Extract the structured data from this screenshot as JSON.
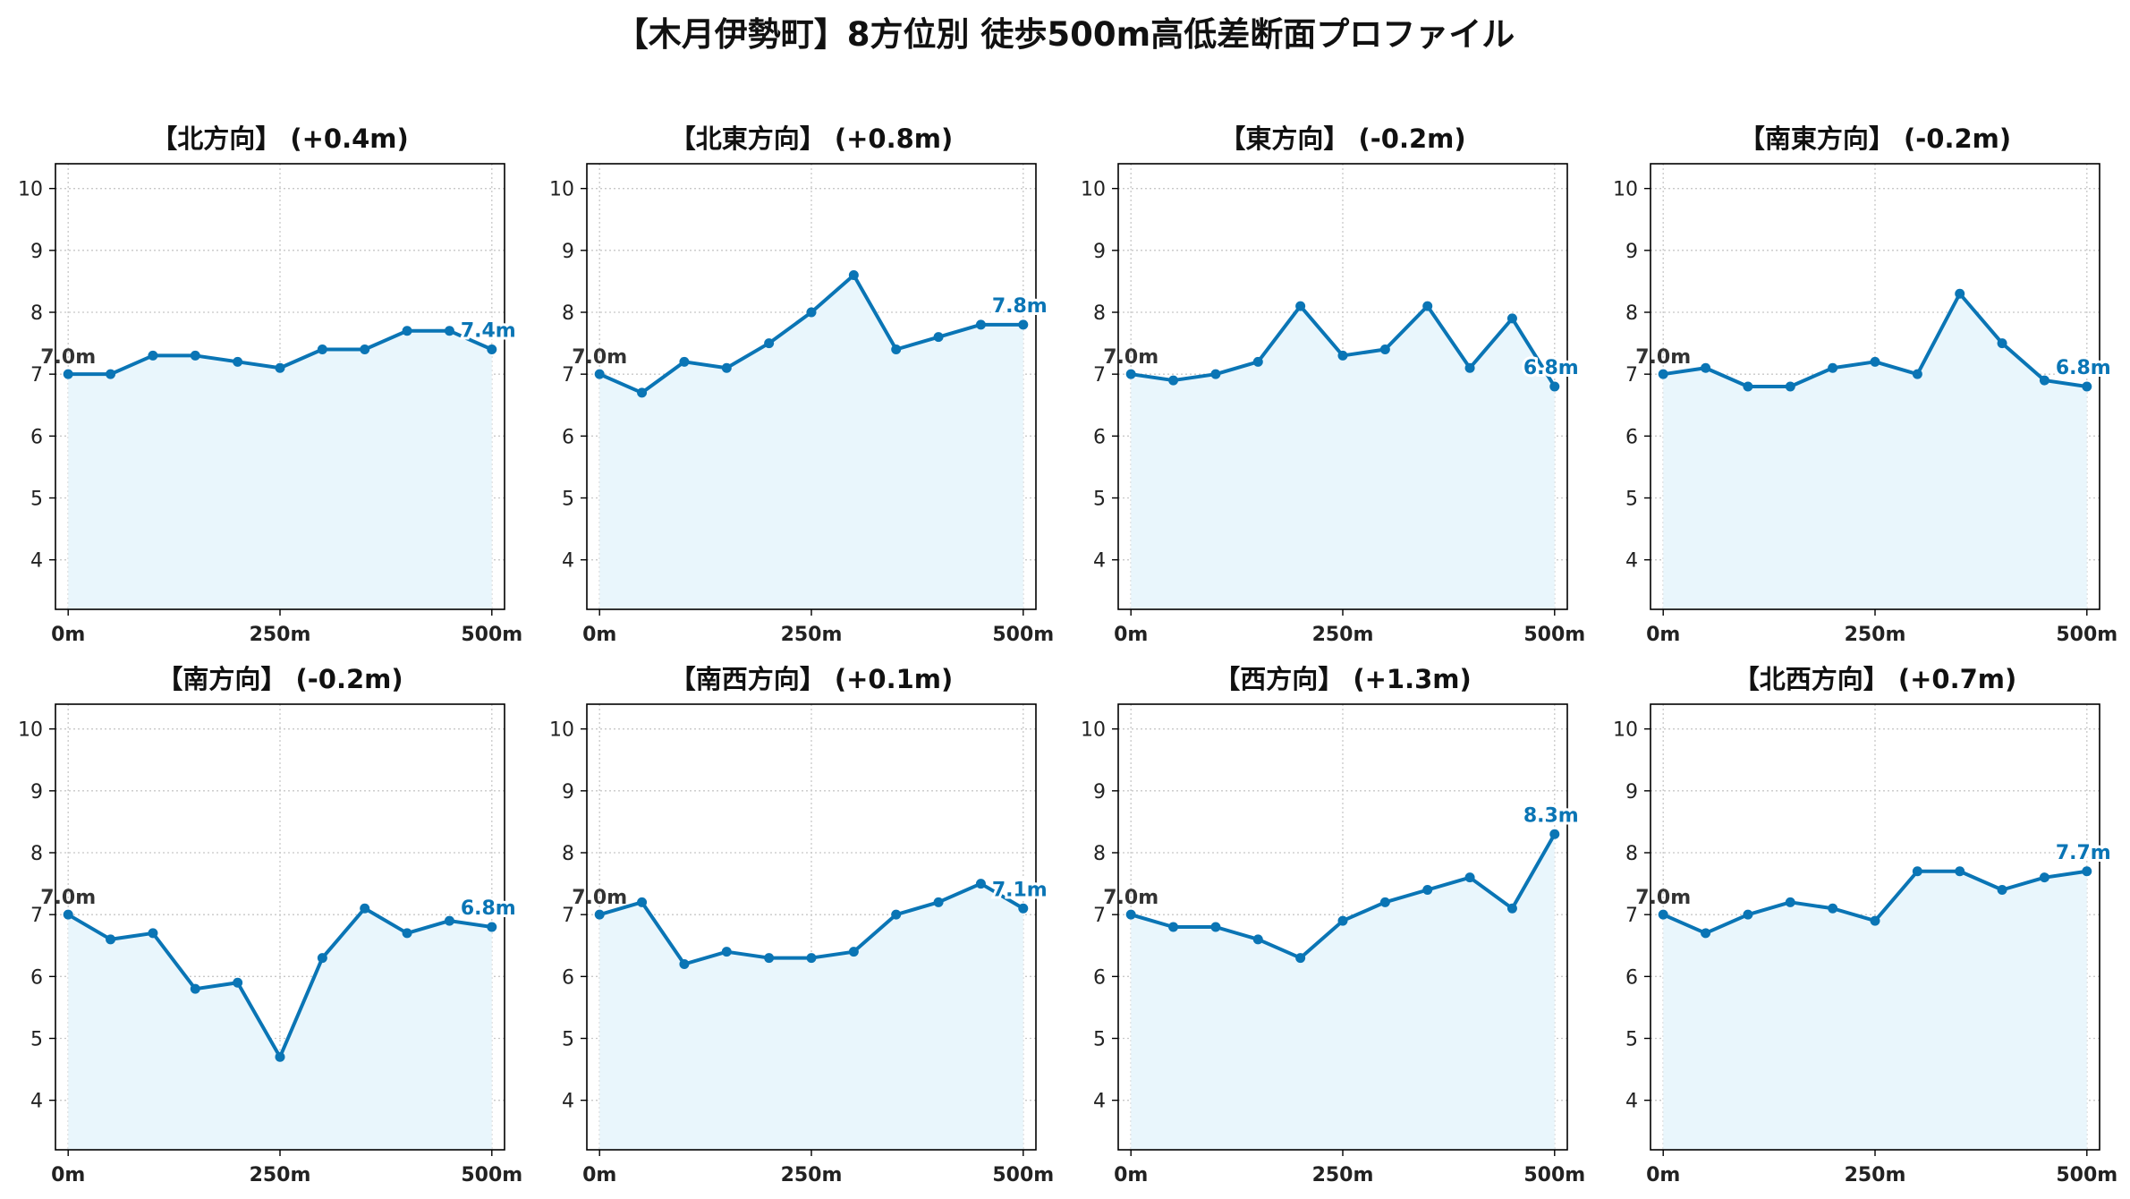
{
  "title": "【木月伊勢町】8方位別 徒歩500m高低差断面プロファイル",
  "colors": {
    "line": "#0a75b5",
    "fill": "#e9f6fc",
    "grid": "#c8c8c8",
    "start_label": "#333333",
    "end_label": "#0a75b5"
  },
  "chart_data": [
    {
      "type": "area",
      "title": "【北方向】 (+0.4m)",
      "x": [
        0,
        50,
        100,
        150,
        200,
        250,
        300,
        350,
        400,
        450,
        500
      ],
      "y": [
        7.0,
        7.0,
        7.3,
        7.3,
        7.2,
        7.1,
        7.4,
        7.4,
        7.7,
        7.7,
        7.4
      ],
      "xticks": [
        "0m",
        "250m",
        "500m"
      ],
      "yticks": [
        4,
        5,
        6,
        7,
        8,
        9,
        10
      ],
      "ylim": [
        3.2,
        10.4
      ],
      "xlim": [
        -15,
        515
      ],
      "start_label": "7.0m",
      "end_label": "7.4m",
      "grid": true
    },
    {
      "type": "area",
      "title": "【北東方向】 (+0.8m)",
      "x": [
        0,
        50,
        100,
        150,
        200,
        250,
        300,
        350,
        400,
        450,
        500
      ],
      "y": [
        7.0,
        6.7,
        7.2,
        7.1,
        7.5,
        8.0,
        8.6,
        7.4,
        7.6,
        7.8,
        7.8
      ],
      "xticks": [
        "0m",
        "250m",
        "500m"
      ],
      "yticks": [
        4,
        5,
        6,
        7,
        8,
        9,
        10
      ],
      "ylim": [
        3.2,
        10.4
      ],
      "xlim": [
        -15,
        515
      ],
      "start_label": "7.0m",
      "end_label": "7.8m",
      "grid": true
    },
    {
      "type": "area",
      "title": "【東方向】 (-0.2m)",
      "x": [
        0,
        50,
        100,
        150,
        200,
        250,
        300,
        350,
        400,
        450,
        500
      ],
      "y": [
        7.0,
        6.9,
        7.0,
        7.2,
        8.1,
        7.3,
        7.4,
        8.1,
        7.1,
        7.9,
        6.8
      ],
      "xticks": [
        "0m",
        "250m",
        "500m"
      ],
      "yticks": [
        4,
        5,
        6,
        7,
        8,
        9,
        10
      ],
      "ylim": [
        3.2,
        10.4
      ],
      "xlim": [
        -15,
        515
      ],
      "start_label": "7.0m",
      "end_label": "6.8m",
      "grid": true
    },
    {
      "type": "area",
      "title": "【南東方向】 (-0.2m)",
      "x": [
        0,
        50,
        100,
        150,
        200,
        250,
        300,
        350,
        400,
        450,
        500
      ],
      "y": [
        7.0,
        7.1,
        6.8,
        6.8,
        7.1,
        7.2,
        7.0,
        8.3,
        7.5,
        6.9,
        6.8
      ],
      "xticks": [
        "0m",
        "250m",
        "500m"
      ],
      "yticks": [
        4,
        5,
        6,
        7,
        8,
        9,
        10
      ],
      "ylim": [
        3.2,
        10.4
      ],
      "xlim": [
        -15,
        515
      ],
      "start_label": "7.0m",
      "end_label": "6.8m",
      "grid": true
    },
    {
      "type": "area",
      "title": "【南方向】 (-0.2m)",
      "x": [
        0,
        50,
        100,
        150,
        200,
        250,
        300,
        350,
        400,
        450,
        500
      ],
      "y": [
        7.0,
        6.6,
        6.7,
        5.8,
        5.9,
        4.7,
        6.3,
        7.1,
        6.7,
        6.9,
        6.8
      ],
      "xticks": [
        "0m",
        "250m",
        "500m"
      ],
      "yticks": [
        4,
        5,
        6,
        7,
        8,
        9,
        10
      ],
      "ylim": [
        3.2,
        10.4
      ],
      "xlim": [
        -15,
        515
      ],
      "start_label": "7.0m",
      "end_label": "6.8m",
      "grid": true
    },
    {
      "type": "area",
      "title": "【南西方向】 (+0.1m)",
      "x": [
        0,
        50,
        100,
        150,
        200,
        250,
        300,
        350,
        400,
        450,
        500
      ],
      "y": [
        7.0,
        7.2,
        6.2,
        6.4,
        6.3,
        6.3,
        6.4,
        7.0,
        7.2,
        7.5,
        7.1
      ],
      "xticks": [
        "0m",
        "250m",
        "500m"
      ],
      "yticks": [
        4,
        5,
        6,
        7,
        8,
        9,
        10
      ],
      "ylim": [
        3.2,
        10.4
      ],
      "xlim": [
        -15,
        515
      ],
      "start_label": "7.0m",
      "end_label": "7.1m",
      "grid": true
    },
    {
      "type": "area",
      "title": "【西方向】 (+1.3m)",
      "x": [
        0,
        50,
        100,
        150,
        200,
        250,
        300,
        350,
        400,
        450,
        500
      ],
      "y": [
        7.0,
        6.8,
        6.8,
        6.6,
        6.3,
        6.9,
        7.2,
        7.4,
        7.6,
        7.1,
        8.3
      ],
      "xticks": [
        "0m",
        "250m",
        "500m"
      ],
      "yticks": [
        4,
        5,
        6,
        7,
        8,
        9,
        10
      ],
      "ylim": [
        3.2,
        10.4
      ],
      "xlim": [
        -15,
        515
      ],
      "start_label": "7.0m",
      "end_label": "8.3m",
      "grid": true
    },
    {
      "type": "area",
      "title": "【北西方向】 (+0.7m)",
      "x": [
        0,
        50,
        100,
        150,
        200,
        250,
        300,
        350,
        400,
        450,
        500
      ],
      "y": [
        7.0,
        6.7,
        7.0,
        7.2,
        7.1,
        6.9,
        7.7,
        7.7,
        7.4,
        7.6,
        7.7
      ],
      "xticks": [
        "0m",
        "250m",
        "500m"
      ],
      "yticks": [
        4,
        5,
        6,
        7,
        8,
        9,
        10
      ],
      "ylim": [
        3.2,
        10.4
      ],
      "xlim": [
        -15,
        515
      ],
      "start_label": "7.0m",
      "end_label": "7.7m",
      "grid": true
    }
  ]
}
